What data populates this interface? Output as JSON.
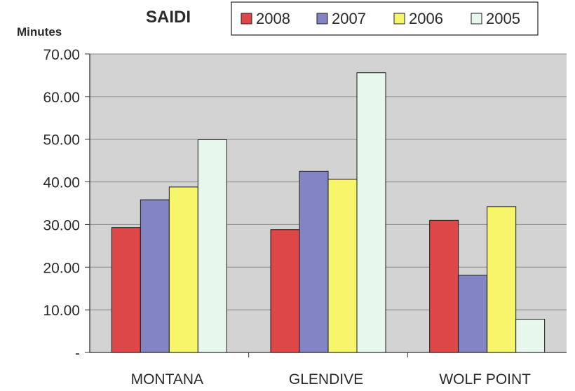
{
  "chart_data": {
    "type": "bar",
    "title": "SAIDI",
    "ylabel": "Minutes",
    "xlabel": "",
    "categories": [
      "MONTANA",
      "GLENDIVE",
      "WOLF POINT"
    ],
    "series": [
      {
        "name": "2008",
        "color": "#dd4747",
        "values": [
          29.3,
          28.8,
          31.0
        ]
      },
      {
        "name": "2007",
        "color": "#8284c4",
        "values": [
          35.8,
          42.5,
          18.1
        ]
      },
      {
        "name": "2006",
        "color": "#f7f56a",
        "values": [
          38.8,
          40.6,
          34.2
        ]
      },
      {
        "name": "2005",
        "color": "#e7f7ec",
        "values": [
          49.9,
          65.6,
          7.8
        ]
      }
    ],
    "ylim": [
      0,
      70
    ],
    "yticks": [
      0,
      10,
      20,
      30,
      40,
      50,
      60,
      70
    ],
    "ytick_labels": [
      "-",
      "10.00",
      "20.00",
      "30.00",
      "40.00",
      "50.00",
      "60.00",
      "70.00"
    ],
    "grid": true,
    "plot_background": "#d3d3d3",
    "legend_position": "top-right"
  }
}
